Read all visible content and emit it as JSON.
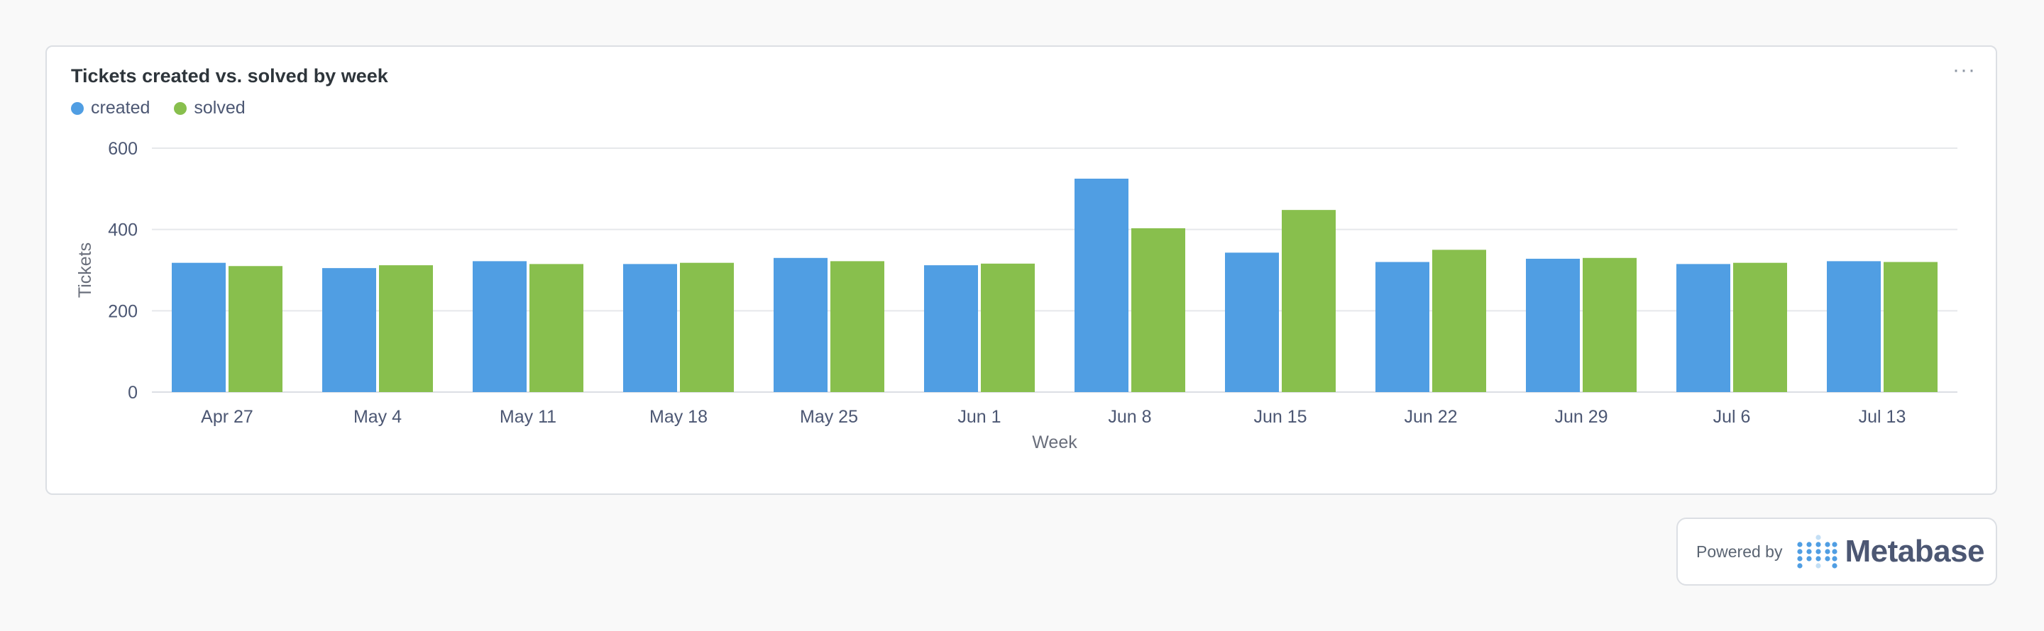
{
  "card": {
    "title": "Tickets created vs. solved by week",
    "menu_glyph": "···"
  },
  "colors": {
    "created": "#509ee3",
    "solved": "#88bf4d",
    "grid": "#e6e8eb",
    "axis_text": "#4c5773"
  },
  "chart_data": {
    "type": "bar",
    "title": "Tickets created vs. solved by week",
    "xlabel": "Week",
    "ylabel": "Tickets",
    "ylim": [
      0,
      600
    ],
    "yticks": [
      0,
      200,
      400,
      600
    ],
    "grid": true,
    "legend_position": "top-left",
    "categories": [
      "Apr 27",
      "May 4",
      "May 11",
      "May 18",
      "May 25",
      "Jun 1",
      "Jun 8",
      "Jun 15",
      "Jun 22",
      "Jun 29",
      "Jul 6",
      "Jul 13"
    ],
    "series": [
      {
        "name": "created",
        "color": "#509ee3",
        "values": [
          318,
          305,
          322,
          315,
          330,
          312,
          525,
          343,
          320,
          328,
          315,
          322
        ]
      },
      {
        "name": "solved",
        "color": "#88bf4d",
        "values": [
          310,
          312,
          315,
          318,
          322,
          316,
          403,
          448,
          350,
          330,
          318,
          320
        ]
      }
    ]
  },
  "footer": {
    "powered_by": "Powered by",
    "brand": "Metabase",
    "logo_icon": "metabase-dots-icon"
  }
}
